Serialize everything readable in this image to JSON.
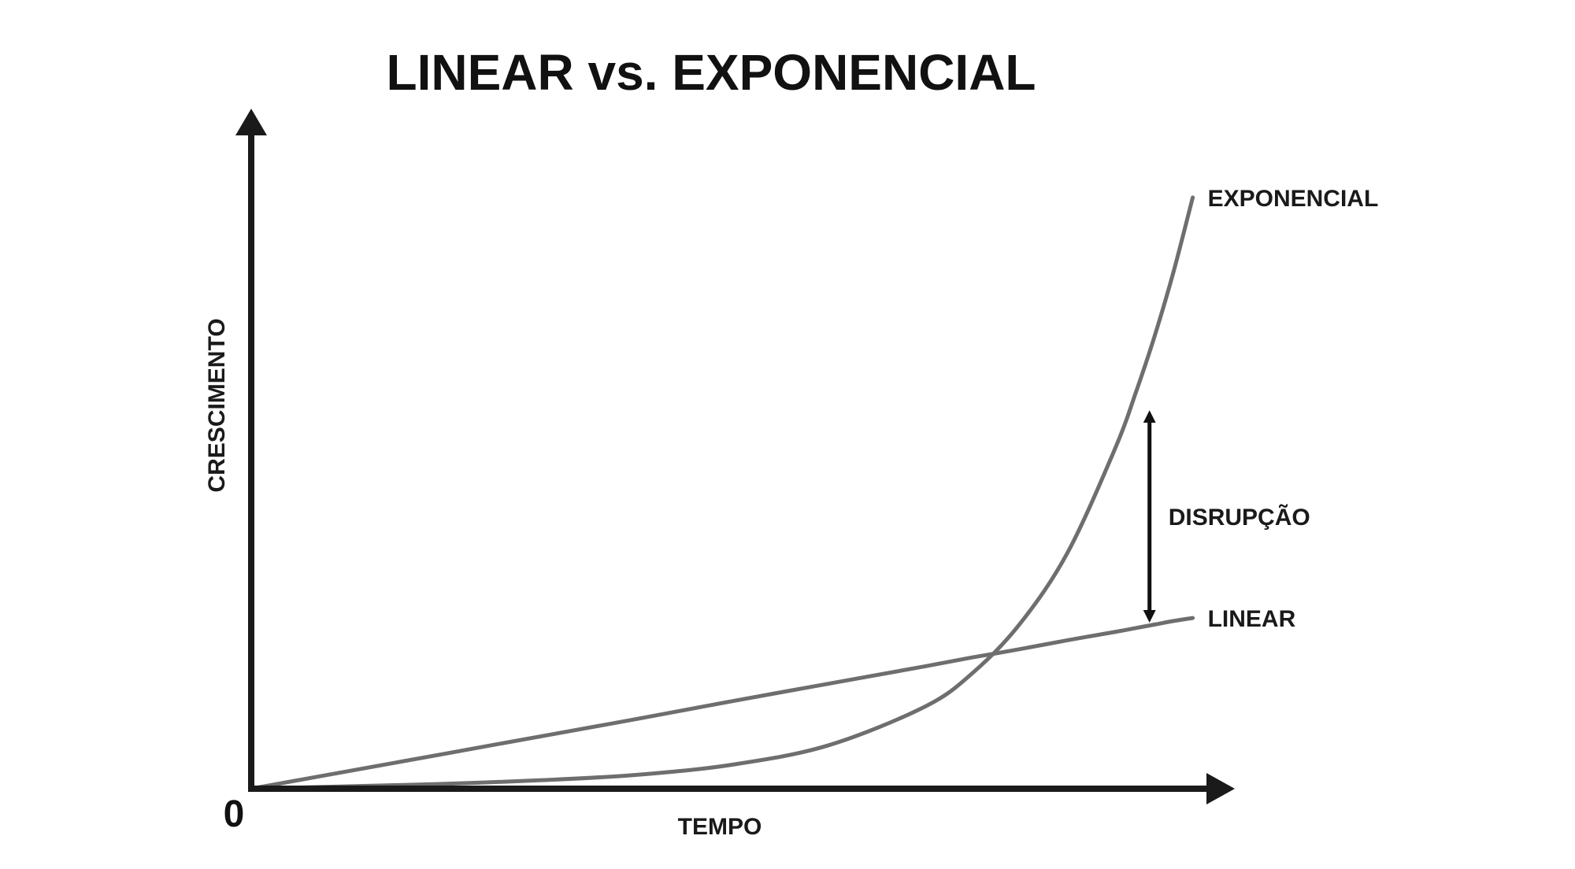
{
  "chart_data": {
    "type": "line",
    "title": "LINEAR vs. EXPONENCIAL",
    "xlabel": "TEMPO",
    "ylabel": "CRESCIMENTO",
    "origin_label": "0",
    "xlim": [
      0,
      100
    ],
    "ylim": [
      0,
      100
    ],
    "grid": false,
    "legend": "none",
    "x": [
      0,
      10,
      20,
      30,
      40,
      50,
      60,
      70,
      75,
      80,
      85,
      90,
      92,
      94,
      96,
      98
    ],
    "series": [
      {
        "name": "EXPONENCIAL",
        "color": "#6e6e6e",
        "values": [
          0,
          0.4,
          0.8,
          1.4,
          2.3,
          4.0,
          7.2,
          13.6,
          19.2,
          27.5,
          39.5,
          57.1,
          65.8,
          75.4,
          86.3,
          98.7
        ]
      },
      {
        "name": "LINEAR",
        "color": "#6e6e6e",
        "values": [
          0,
          2.9,
          5.8,
          8.7,
          11.6,
          14.6,
          17.5,
          20.4,
          21.9,
          23.3,
          24.8,
          26.2,
          26.8,
          27.4,
          28.0,
          28.5
        ]
      }
    ],
    "annotations": [
      {
        "label": "DISRUPÇÃO",
        "x": 93.5,
        "y_from": 27.2,
        "y_to": 63.7
      }
    ]
  }
}
